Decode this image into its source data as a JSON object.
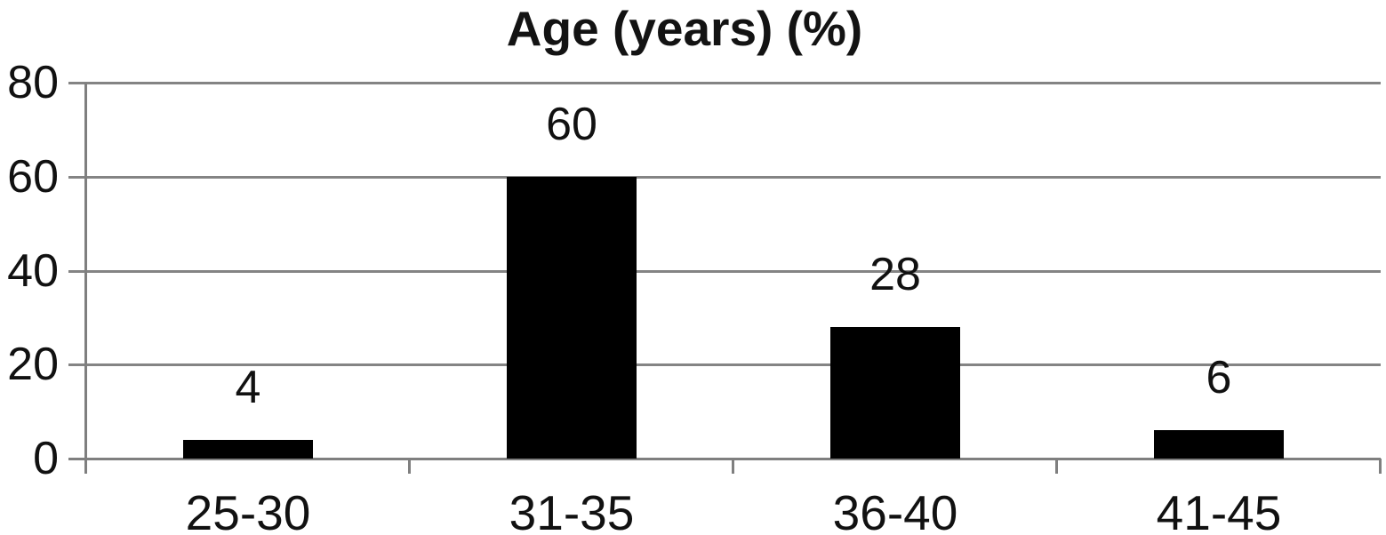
{
  "chart_data": {
    "type": "bar",
    "title": "Age (years) (%)",
    "categories": [
      "25-30",
      "31-35",
      "36-40",
      "41-45"
    ],
    "values": [
      4,
      60,
      28,
      6
    ],
    "value_labels": [
      "4",
      "60",
      "28",
      "6"
    ],
    "ytick_labels": [
      "0",
      "20",
      "40",
      "60",
      "80"
    ],
    "yticks": [
      0,
      20,
      40,
      60,
      80
    ],
    "ylim": [
      0,
      80
    ],
    "xlabel": "",
    "ylabel": "",
    "grid": true,
    "legend": "none",
    "colors": {
      "bar": "#000000",
      "gridline": "#848484",
      "axis": "#7f7f7f",
      "text": "#111111",
      "background": "#ffffff"
    }
  }
}
